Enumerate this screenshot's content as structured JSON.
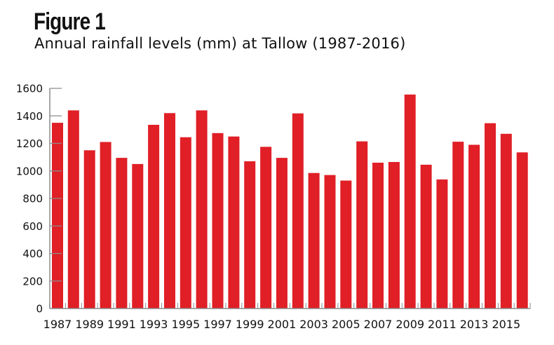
{
  "figure": {
    "label": "Figure 1",
    "subtitle": "Annual rainfall levels (mm) at Tallow (1987-2016)"
  },
  "colors": {
    "bar": "#e01f26",
    "axis": "#8c8c8c",
    "text": "#111111"
  },
  "chart_data": {
    "type": "bar",
    "title": "Annual rainfall levels (mm) at Tallow (1987-2016)",
    "xlabel": "",
    "ylabel": "",
    "ylim": [
      0,
      1600
    ],
    "yticks": [
      0,
      200,
      400,
      600,
      800,
      1000,
      1200,
      1400,
      1600
    ],
    "ytick_labels": [
      "0",
      "200",
      "400",
      "600",
      "800",
      "1000",
      "1200",
      "1400",
      "1600"
    ],
    "xtick_labels": [
      "1987",
      "1989",
      "1991",
      "1993",
      "1995",
      "1997",
      "1999",
      "2001",
      "2003",
      "2005",
      "2007",
      "2009",
      "2011",
      "2013",
      "2015"
    ],
    "grid": false,
    "legend": "none",
    "categories": [
      "1987",
      "1988",
      "1989",
      "1990",
      "1991",
      "1992",
      "1993",
      "1994",
      "1995",
      "1996",
      "1997",
      "1998",
      "1999",
      "2000",
      "2001",
      "2002",
      "2003",
      "2004",
      "2005",
      "2006",
      "2007",
      "2008",
      "2009",
      "2010",
      "2011",
      "2012",
      "2013",
      "2014",
      "2015",
      "2016"
    ],
    "values": [
      1350,
      1440,
      1150,
      1210,
      1095,
      1050,
      1335,
      1420,
      1245,
      1440,
      1275,
      1250,
      1070,
      1175,
      1095,
      1418,
      985,
      970,
      930,
      1215,
      1060,
      1065,
      1555,
      1045,
      938,
      1212,
      1190,
      1347,
      1270,
      1135
    ]
  }
}
